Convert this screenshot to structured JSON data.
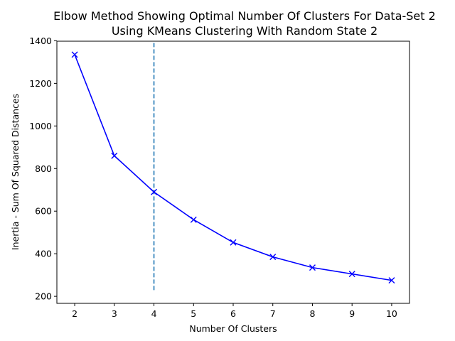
{
  "chart_data": {
    "type": "line",
    "title_lines": [
      "Elbow Method Showing Optimal Number Of Clusters For Data-Set 2",
      "Using KMeans Clustering With Random State 2"
    ],
    "xlabel": "Number Of Clusters",
    "ylabel": "Inertia - Sum Of Squared Distances",
    "x": [
      2,
      3,
      4,
      5,
      6,
      7,
      8,
      9,
      10
    ],
    "series": [
      {
        "values": [
          1335,
          860,
          690,
          560,
          453,
          385,
          335,
          305,
          275
        ],
        "color": "#0000ff",
        "marker": "x"
      }
    ],
    "vline": {
      "x": 4,
      "ymin": 225,
      "ymax": 1390,
      "color": "#1f77b4",
      "style": "dashed"
    },
    "xlim": [
      1.55,
      10.45
    ],
    "ylim": [
      167,
      1398
    ],
    "xticks": [
      2,
      3,
      4,
      5,
      6,
      7,
      8,
      9,
      10
    ],
    "yticks": [
      200,
      400,
      600,
      800,
      1000,
      1200,
      1400
    ],
    "grid": false
  }
}
